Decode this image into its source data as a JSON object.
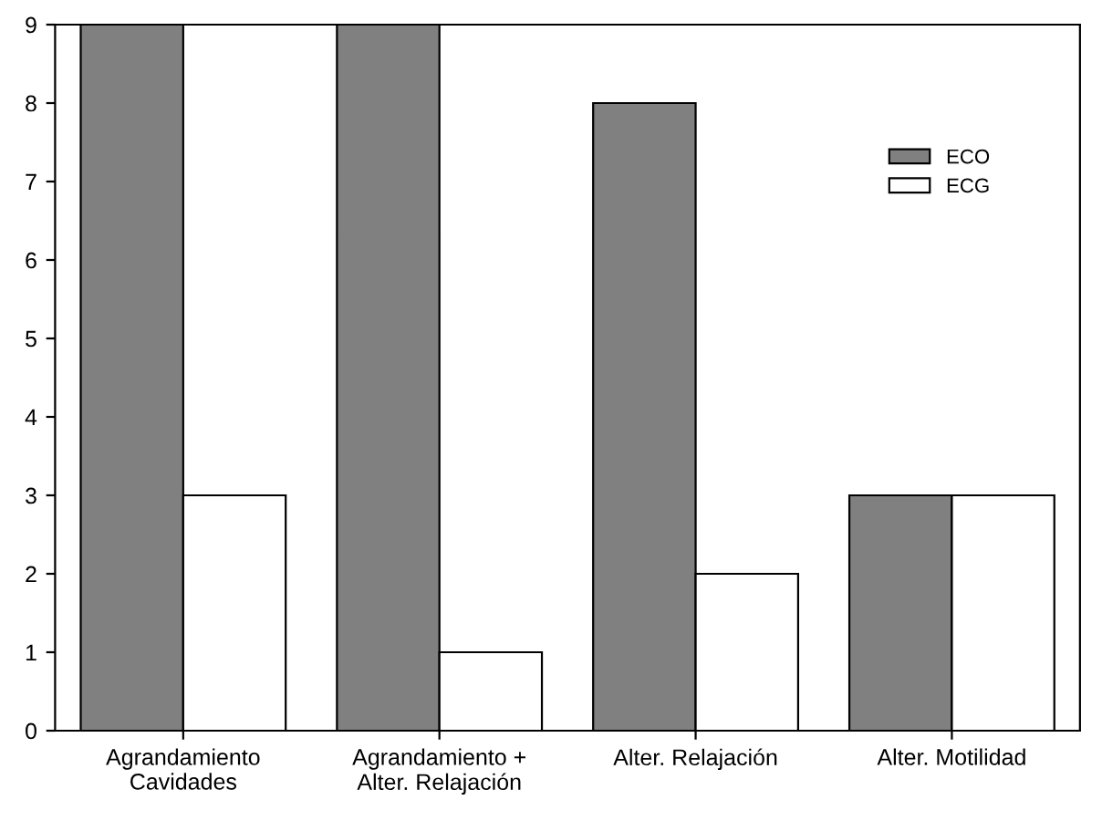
{
  "chart_data": {
    "type": "bar",
    "categories": [
      "Agrandamiento\nCavidades",
      "Agrandamiento +\nAlter. Relajación",
      "Alter. Relajación",
      "Alter. Motilidad"
    ],
    "series": [
      {
        "name": "ECO",
        "color": "#808080",
        "values": [
          9,
          9,
          8,
          3
        ]
      },
      {
        "name": "ECG",
        "color": "#ffffff",
        "values": [
          3,
          1,
          2,
          3
        ]
      }
    ],
    "ylim": [
      0,
      9
    ],
    "yticks": [
      0,
      1,
      2,
      3,
      4,
      5,
      6,
      7,
      8,
      9
    ],
    "grid": false,
    "legend": "top right"
  }
}
